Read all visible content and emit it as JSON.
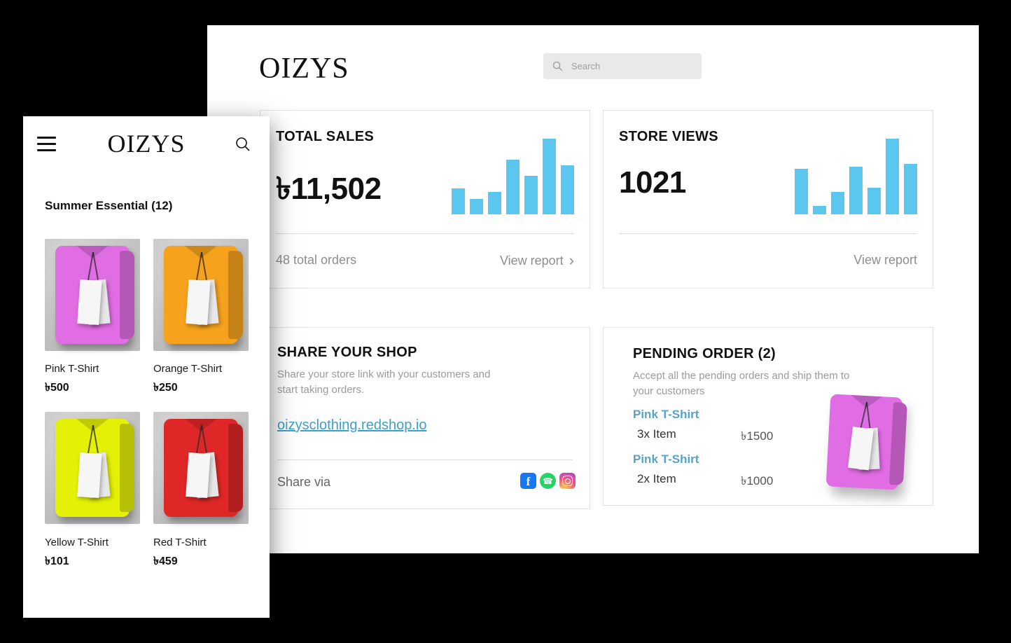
{
  "desktop": {
    "logo": "OIZYS",
    "search_placeholder": "Search",
    "total_sales": {
      "title": "TOTAL SALES",
      "value": "৳11,502",
      "orders_summary": "48 total orders",
      "view_report": "View report"
    },
    "store_views": {
      "title": "STORE VIEWS",
      "value": "1021",
      "view_report": "View report"
    },
    "share_shop": {
      "title": "SHARE YOUR SHOP",
      "description": "Share your store link with your customers and start taking orders.",
      "link": "oizysclothing.redshop.io",
      "share_via": "Share via"
    },
    "pending": {
      "title": "PENDING ORDER (2)",
      "description": "Accept all the pending orders and ship them to your customers",
      "orders": [
        {
          "name": "Pink T-Shirt",
          "qty": "3x Item",
          "price": "৳1500"
        },
        {
          "name": "Pink T-Shirt",
          "qty": "2x Item",
          "price": "৳1000"
        }
      ]
    }
  },
  "mobile": {
    "logo": "OIZYS",
    "section_title": "Summer Essential (12)",
    "products": [
      {
        "name": "Pink T-Shirt",
        "price": "৳500",
        "color": "#e16de4"
      },
      {
        "name": "Orange T-Shirt",
        "price": "৳250",
        "color": "#f6a21c"
      },
      {
        "name": "Yellow T-Shirt",
        "price": "৳101",
        "color": "#e4f107"
      },
      {
        "name": "Red T-Shirt",
        "price": "৳459",
        "color": "#e02727"
      }
    ]
  },
  "chart_data": [
    {
      "type": "bar",
      "title": "TOTAL SALES",
      "values": [
        34,
        20,
        30,
        72,
        51,
        100,
        65
      ],
      "ylim": [
        0,
        100
      ],
      "color": "#5bc6ee"
    },
    {
      "type": "bar",
      "title": "STORE VIEWS",
      "values": [
        60,
        11,
        30,
        63,
        35,
        100,
        67
      ],
      "ylim": [
        0,
        100
      ],
      "color": "#5bc6ee"
    }
  ],
  "icons": {
    "search": "search-icon",
    "menu": "hamburger-icon",
    "chevron": "chevron-right-icon",
    "facebook": "facebook-icon",
    "whatsapp": "whatsapp-icon",
    "instagram": "instagram-icon"
  },
  "colors": {
    "chart_blue": "#5bc6ee",
    "link_teal": "#3f9fc7",
    "order_name_teal": "#5aa2c4",
    "facebook_blue": "#1877f2",
    "whatsapp_green": "#25d366"
  }
}
